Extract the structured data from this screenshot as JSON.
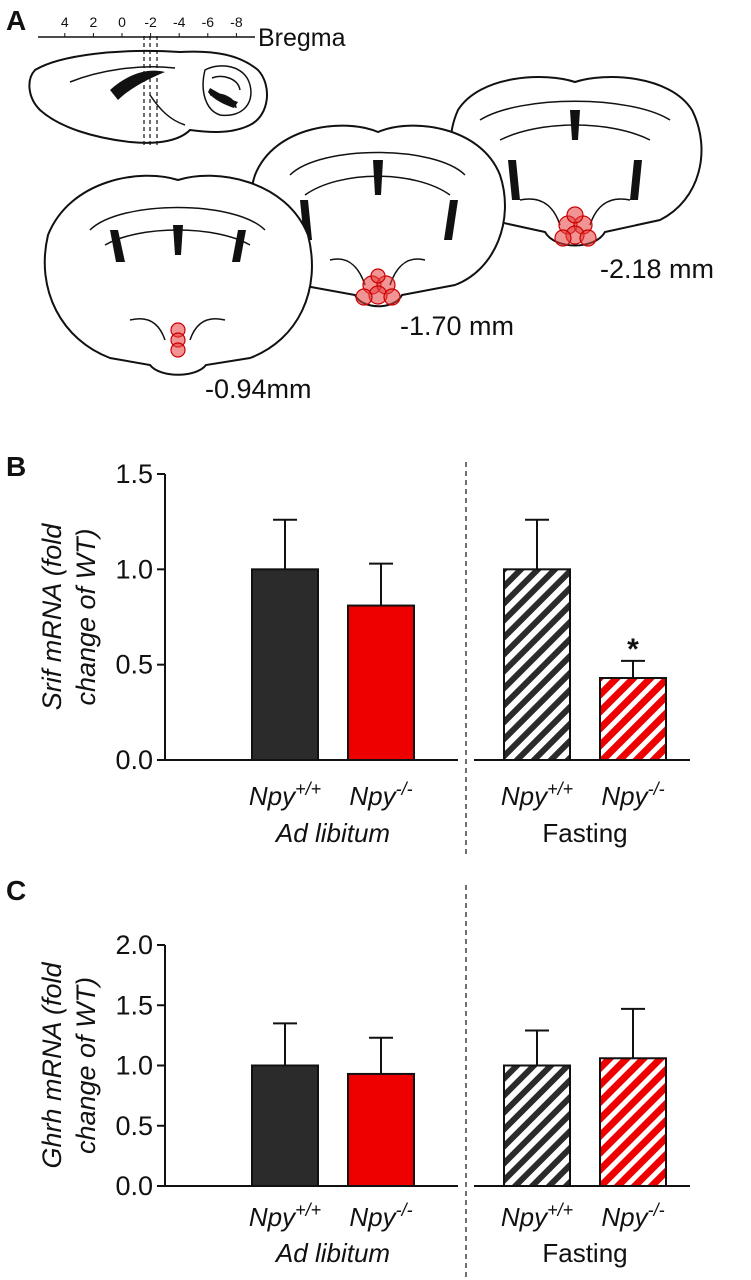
{
  "panel_labels": [
    "A",
    "B",
    "C"
  ],
  "diagram": {
    "bregma_label": "Bregma",
    "bregma_ticks": [
      4,
      2,
      0,
      -2,
      -4,
      -6,
      -8
    ],
    "sections": [
      "-0.94mm",
      "-1.70 mm",
      "-2.18 mm"
    ]
  },
  "chart_data": [
    {
      "type": "bar",
      "ylabel": [
        "Srif mRNA (fold",
        "change of WT)"
      ],
      "categories": [
        {
          "name": "Npy",
          "sup": "+/+"
        },
        {
          "name": "Npy",
          "sup": "-/-"
        },
        {
          "name": "Npy",
          "sup": "+/+"
        },
        {
          "name": "Npy",
          "sup": "-/-"
        }
      ],
      "groups": [
        "Ad libitum",
        "Fasting"
      ],
      "values": [
        1.0,
        0.81,
        1.0,
        0.43
      ],
      "errors": [
        0.26,
        0.22,
        0.26,
        0.09
      ],
      "colors": [
        "#2b2b2b",
        "#ee0000",
        "#2b2b2b",
        "#ee0000"
      ],
      "hatched": [
        false,
        false,
        true,
        true
      ],
      "significance": [
        null,
        null,
        null,
        "*"
      ],
      "ylim": [
        0,
        1.5
      ],
      "yticks": [
        {
          "value": 0,
          "label": "0.0"
        },
        {
          "value": 0.5,
          "label": "0.5"
        },
        {
          "value": 1,
          "label": "1.0"
        },
        {
          "value": 1.5,
          "label": "1.5"
        }
      ]
    },
    {
      "type": "bar",
      "ylabel": [
        "Ghrh mRNA (fold",
        "change of WT)"
      ],
      "categories": [
        {
          "name": "Npy",
          "sup": "+/+"
        },
        {
          "name": "Npy",
          "sup": "-/-"
        },
        {
          "name": "Npy",
          "sup": "+/+"
        },
        {
          "name": "Npy",
          "sup": "-/-"
        }
      ],
      "groups": [
        "Ad libitum",
        "Fasting"
      ],
      "values": [
        1.0,
        0.93,
        1.0,
        1.06
      ],
      "errors": [
        0.35,
        0.3,
        0.29,
        0.41
      ],
      "colors": [
        "#2b2b2b",
        "#ee0000",
        "#2b2b2b",
        "#ee0000"
      ],
      "hatched": [
        false,
        false,
        true,
        true
      ],
      "significance": [
        null,
        null,
        null,
        null
      ],
      "ylim": [
        0,
        2
      ],
      "yticks": [
        {
          "value": 0,
          "label": "0.0"
        },
        {
          "value": 0.5,
          "label": "0.5"
        },
        {
          "value": 1,
          "label": "1.0"
        },
        {
          "value": 1.5,
          "label": "1.5"
        },
        {
          "value": 2,
          "label": "2.0"
        }
      ]
    }
  ]
}
